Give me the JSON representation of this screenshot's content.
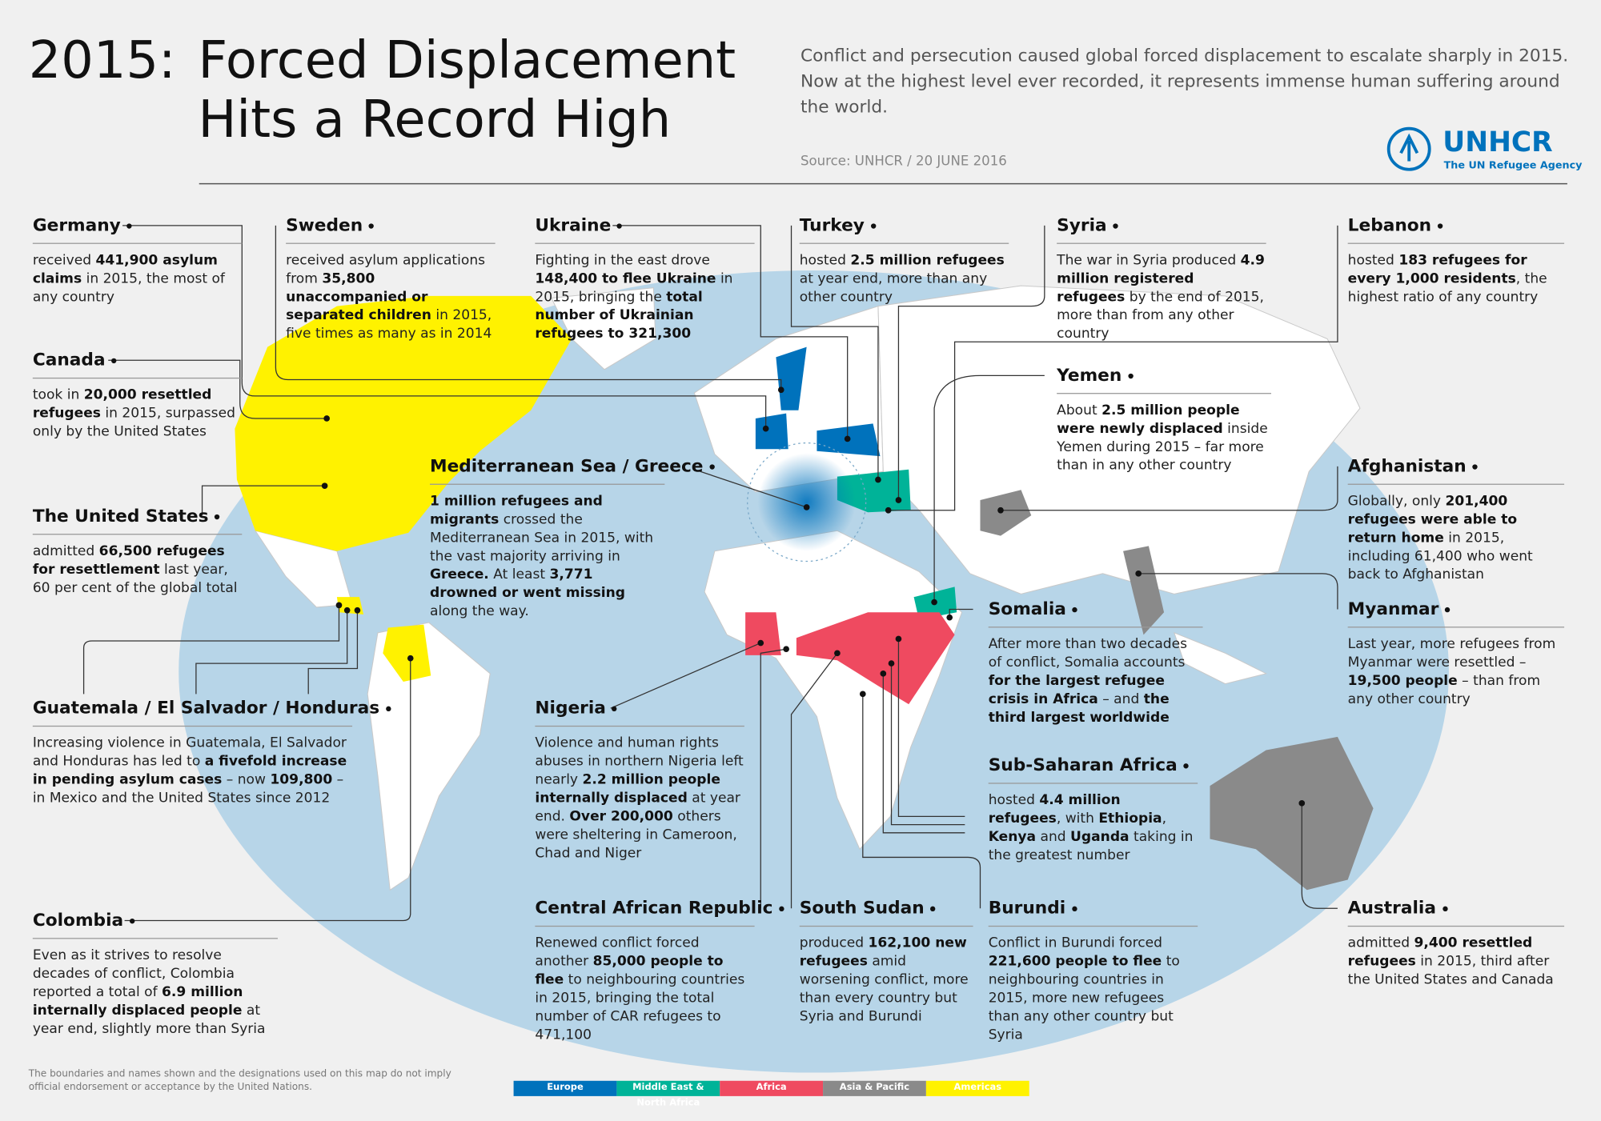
{
  "header": {
    "year": "2015:",
    "title": "Forced Displacement Hits a Record High",
    "intro": "Conflict and persecution caused global forced displacement to escalate sharply in 2015. Now at the highest level ever recorded, it represents immense human suffering around the world.",
    "source": "Source: UNHCR / 20 JUNE 2016",
    "logo": "UNHCR",
    "tagline": "The UN Refugee Agency"
  },
  "entries": [
    {
      "heading": "Germany",
      "body": [
        "received ",
        {
          "b": "441,900 asylum claims"
        },
        " in 2015, the most of any country"
      ]
    },
    {
      "heading": "Sweden",
      "body": [
        "received asylum applications from ",
        {
          "b": "35,800 unaccompanied or separated children"
        },
        " in 2015, five times as many as in 2014"
      ]
    },
    {
      "heading": "Ukraine",
      "body": [
        "Fighting in the east drove ",
        {
          "b": "148,400 to flee Ukraine"
        },
        " in 2015, bringing the ",
        {
          "b": "total number of Ukrainian refugees to 321,300"
        }
      ]
    },
    {
      "heading": "Turkey",
      "body": [
        "hosted ",
        {
          "b": "2.5 million refugees"
        },
        " at year end, more than any other country"
      ]
    },
    {
      "heading": "Syria",
      "body": [
        "The war in Syria produced ",
        {
          "b": "4.9 million registered refugees"
        },
        " by the end of 2015, more than from any other country"
      ]
    },
    {
      "heading": "Lebanon",
      "body": [
        "hosted ",
        {
          "b": "183 refugees for every 1,000 residents"
        },
        ", the highest ratio of any country"
      ]
    },
    {
      "heading": "Canada",
      "body": [
        "took in ",
        {
          "b": "20,000 resettled refugees"
        },
        " in 2015, surpassed only by the United States"
      ]
    },
    {
      "heading": "The United States",
      "body": [
        "admitted ",
        {
          "b": "66,500 refugees for resettlement"
        },
        " last year, 60 per cent of the global total"
      ]
    },
    {
      "heading": "Yemen",
      "body": [
        "About ",
        {
          "b": "2.5 million people were newly displaced"
        },
        " inside Yemen during 2015 – far more than in any other country"
      ]
    },
    {
      "heading": "Mediterranean Sea / Greece",
      "body": [
        {
          "b": "1 million refugees and migrants"
        },
        " crossed the Mediterranean Sea in 2015, with the vast majority arriving in ",
        {
          "b": "Greece."
        },
        " At least ",
        {
          "b": "3,771 drowned or went missing"
        },
        " along the way."
      ]
    },
    {
      "heading": "Afghanistan",
      "body": [
        "Globally, only ",
        {
          "b": "201,400 refugees were able to return home"
        },
        " in 2015, including 61,400 who went back to Afghanistan"
      ]
    },
    {
      "heading": "Somalia",
      "body": [
        "After more than two decades of conflict, Somalia accounts ",
        {
          "b": "for the largest refugee crisis in Africa"
        },
        " – and ",
        {
          "b": "the third largest worldwide"
        }
      ]
    },
    {
      "heading": "Myanmar",
      "body": [
        "Last year, more refugees from Myanmar were resettled – ",
        {
          "b": "19,500 people"
        },
        " – than from any other country"
      ]
    },
    {
      "heading": "Guatemala / El Salvador / Honduras",
      "body": [
        "Increasing violence in Guatemala, El Salvador and Honduras has led to ",
        {
          "b": "a fivefold increase in pending asylum cases"
        },
        " – now ",
        {
          "b": "109,800"
        },
        " – in Mexico and the United States since 2012"
      ]
    },
    {
      "heading": "Nigeria",
      "body": [
        "Violence and human rights abuses in northern Nigeria left nearly ",
        {
          "b": "2.2 million people internally displaced"
        },
        " at year end. ",
        {
          "b": "Over 200,000"
        },
        " others were sheltering in Cameroon, Chad and Niger"
      ]
    },
    {
      "heading": "Sub-Saharan Africa",
      "body": [
        "hosted ",
        {
          "b": "4.4 million refugees"
        },
        ", with ",
        {
          "b": "Ethiopia"
        },
        ", ",
        {
          "b": "Kenya"
        },
        " and ",
        {
          "b": "Uganda"
        },
        " taking in the greatest number"
      ]
    },
    {
      "heading": "Central African Republic",
      "body": [
        "Renewed conflict forced another ",
        {
          "b": "85,000 people to flee"
        },
        " to neighbouring countries in 2015, bringing the total number of CAR refugees to 471,100"
      ]
    },
    {
      "heading": "South Sudan",
      "body": [
        "produced ",
        {
          "b": "162,100 new refugees"
        },
        " amid worsening conflict, more than every country but Syria and Burundi"
      ]
    },
    {
      "heading": "Burundi",
      "body": [
        "Conflict in Burundi forced ",
        {
          "b": "221,600 people to flee"
        },
        " to neighbouring countries in 2015, more new refugees than any other country but Syria"
      ]
    },
    {
      "heading": "Australia",
      "body": [
        "admitted ",
        {
          "b": "9,400 resettled refugees"
        },
        " in 2015, third after the United States and Canada"
      ]
    },
    {
      "heading": "Colombia",
      "body": [
        "Even as it strives to resolve decades of conflict, Colombia reported a total of ",
        {
          "b": "6.9 million internally displaced people"
        },
        " at year end, slightly more than Syria"
      ]
    }
  ],
  "legend": [
    {
      "name": "Europe",
      "color": "#0072bc"
    },
    {
      "name": "Middle East & North Africa",
      "color": "#00b398"
    },
    {
      "name": "Africa",
      "color": "#ef4a60"
    },
    {
      "name": "Asia & Pacific",
      "color": "#8a8a8a"
    },
    {
      "name": "Americas",
      "color": "#fff200"
    }
  ],
  "disclaimer": "The boundaries and names shown and the designations used on this map do not imply official endorsement or acceptance by the United Nations."
}
